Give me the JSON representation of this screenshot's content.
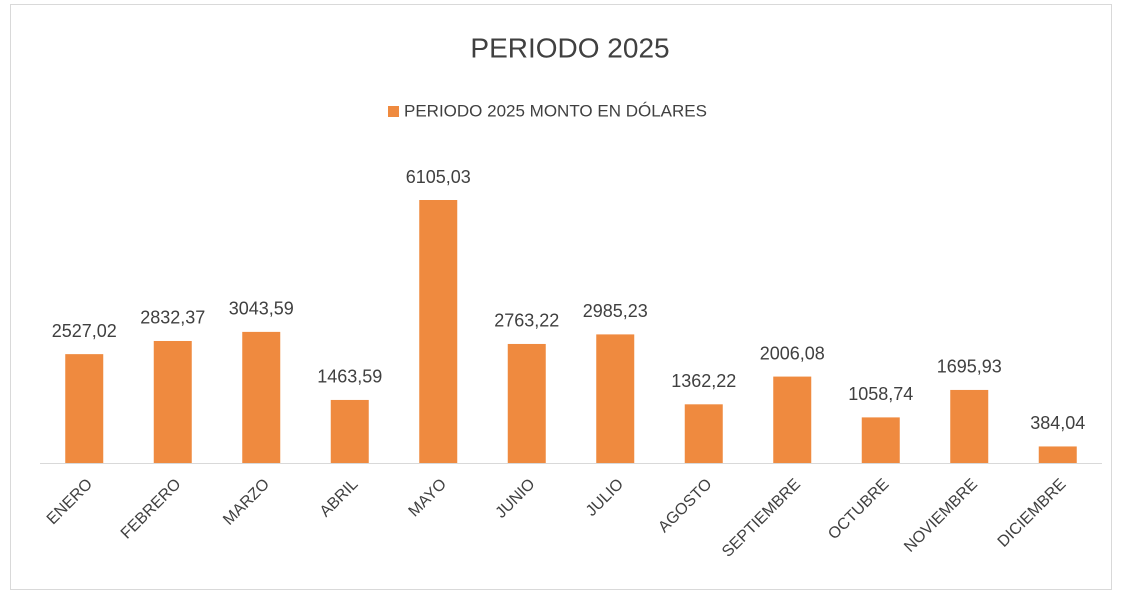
{
  "chart_data": {
    "type": "bar",
    "title": "PERIODO 2025",
    "categories": [
      "ENERO",
      "FEBRERO",
      "MARZO",
      "ABRIL",
      "MAYO",
      "JUNIO",
      "JULIO",
      "AGOSTO",
      "SEPTIEMBRE",
      "OCTUBRE",
      "NOVIEMBRE",
      "DICIEMBRE"
    ],
    "series": [
      {
        "name": "PERIODO 2025 MONTO EN DÓLARES",
        "color": "#ef8a3f",
        "values": [
          2527.02,
          2832.37,
          3043.59,
          1463.59,
          6105.03,
          2763.22,
          2985.23,
          1362.22,
          2006.08,
          1058.74,
          1695.93,
          384.04
        ],
        "value_labels": [
          "2527,02",
          "2832,37",
          "3043,59",
          "1463,59",
          "6105,03",
          "2763,22",
          "2985,23",
          "1362,22",
          "2006,08",
          "1058,74",
          "1695,93",
          "384,04"
        ]
      }
    ],
    "legend": "top"
  }
}
